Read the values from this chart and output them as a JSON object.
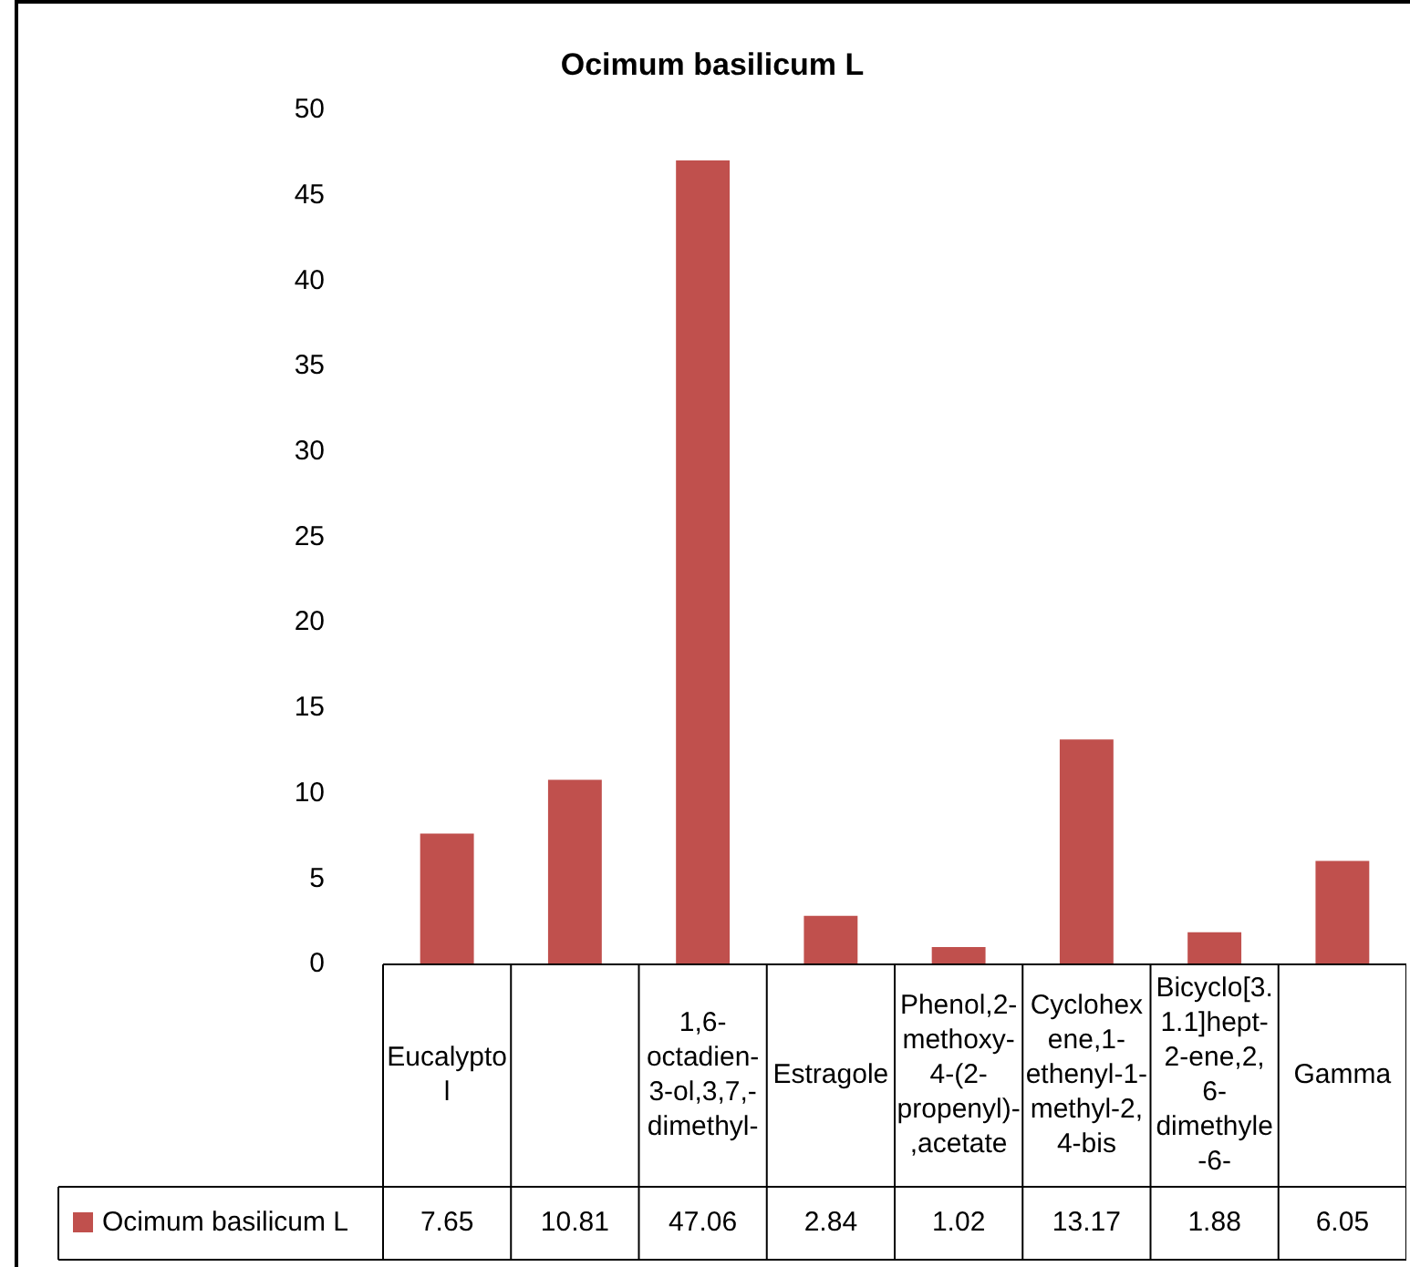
{
  "chart_data": {
    "type": "bar",
    "title": "Ocimum basilicum L",
    "categories": [
      "Eucalyptol",
      null,
      "1,6-octadien-3-ol,3,7,-dimethyl-",
      "Estragole",
      "Phenol,2-methoxy-4-(2-propenyl)-,acetate",
      "Cyclohexene,1-ethenyl-1-methyl-2,4-bis",
      "Bicyclo[3.1.1]hept-2-ene,2,6-dimethyle-6-",
      "Gamma"
    ],
    "series": [
      {
        "name": "Ocimum basilicum L",
        "color": "#c0504d",
        "values": [
          7.65,
          10.81,
          47.06,
          2.84,
          1.02,
          13.17,
          1.88,
          6.05
        ]
      }
    ],
    "ylim": [
      0,
      50
    ],
    "yticks": [
      0,
      5,
      10,
      15,
      20,
      25,
      30,
      35,
      40,
      45,
      50
    ],
    "grid": false,
    "legend": "bottom",
    "data_labels": true
  }
}
